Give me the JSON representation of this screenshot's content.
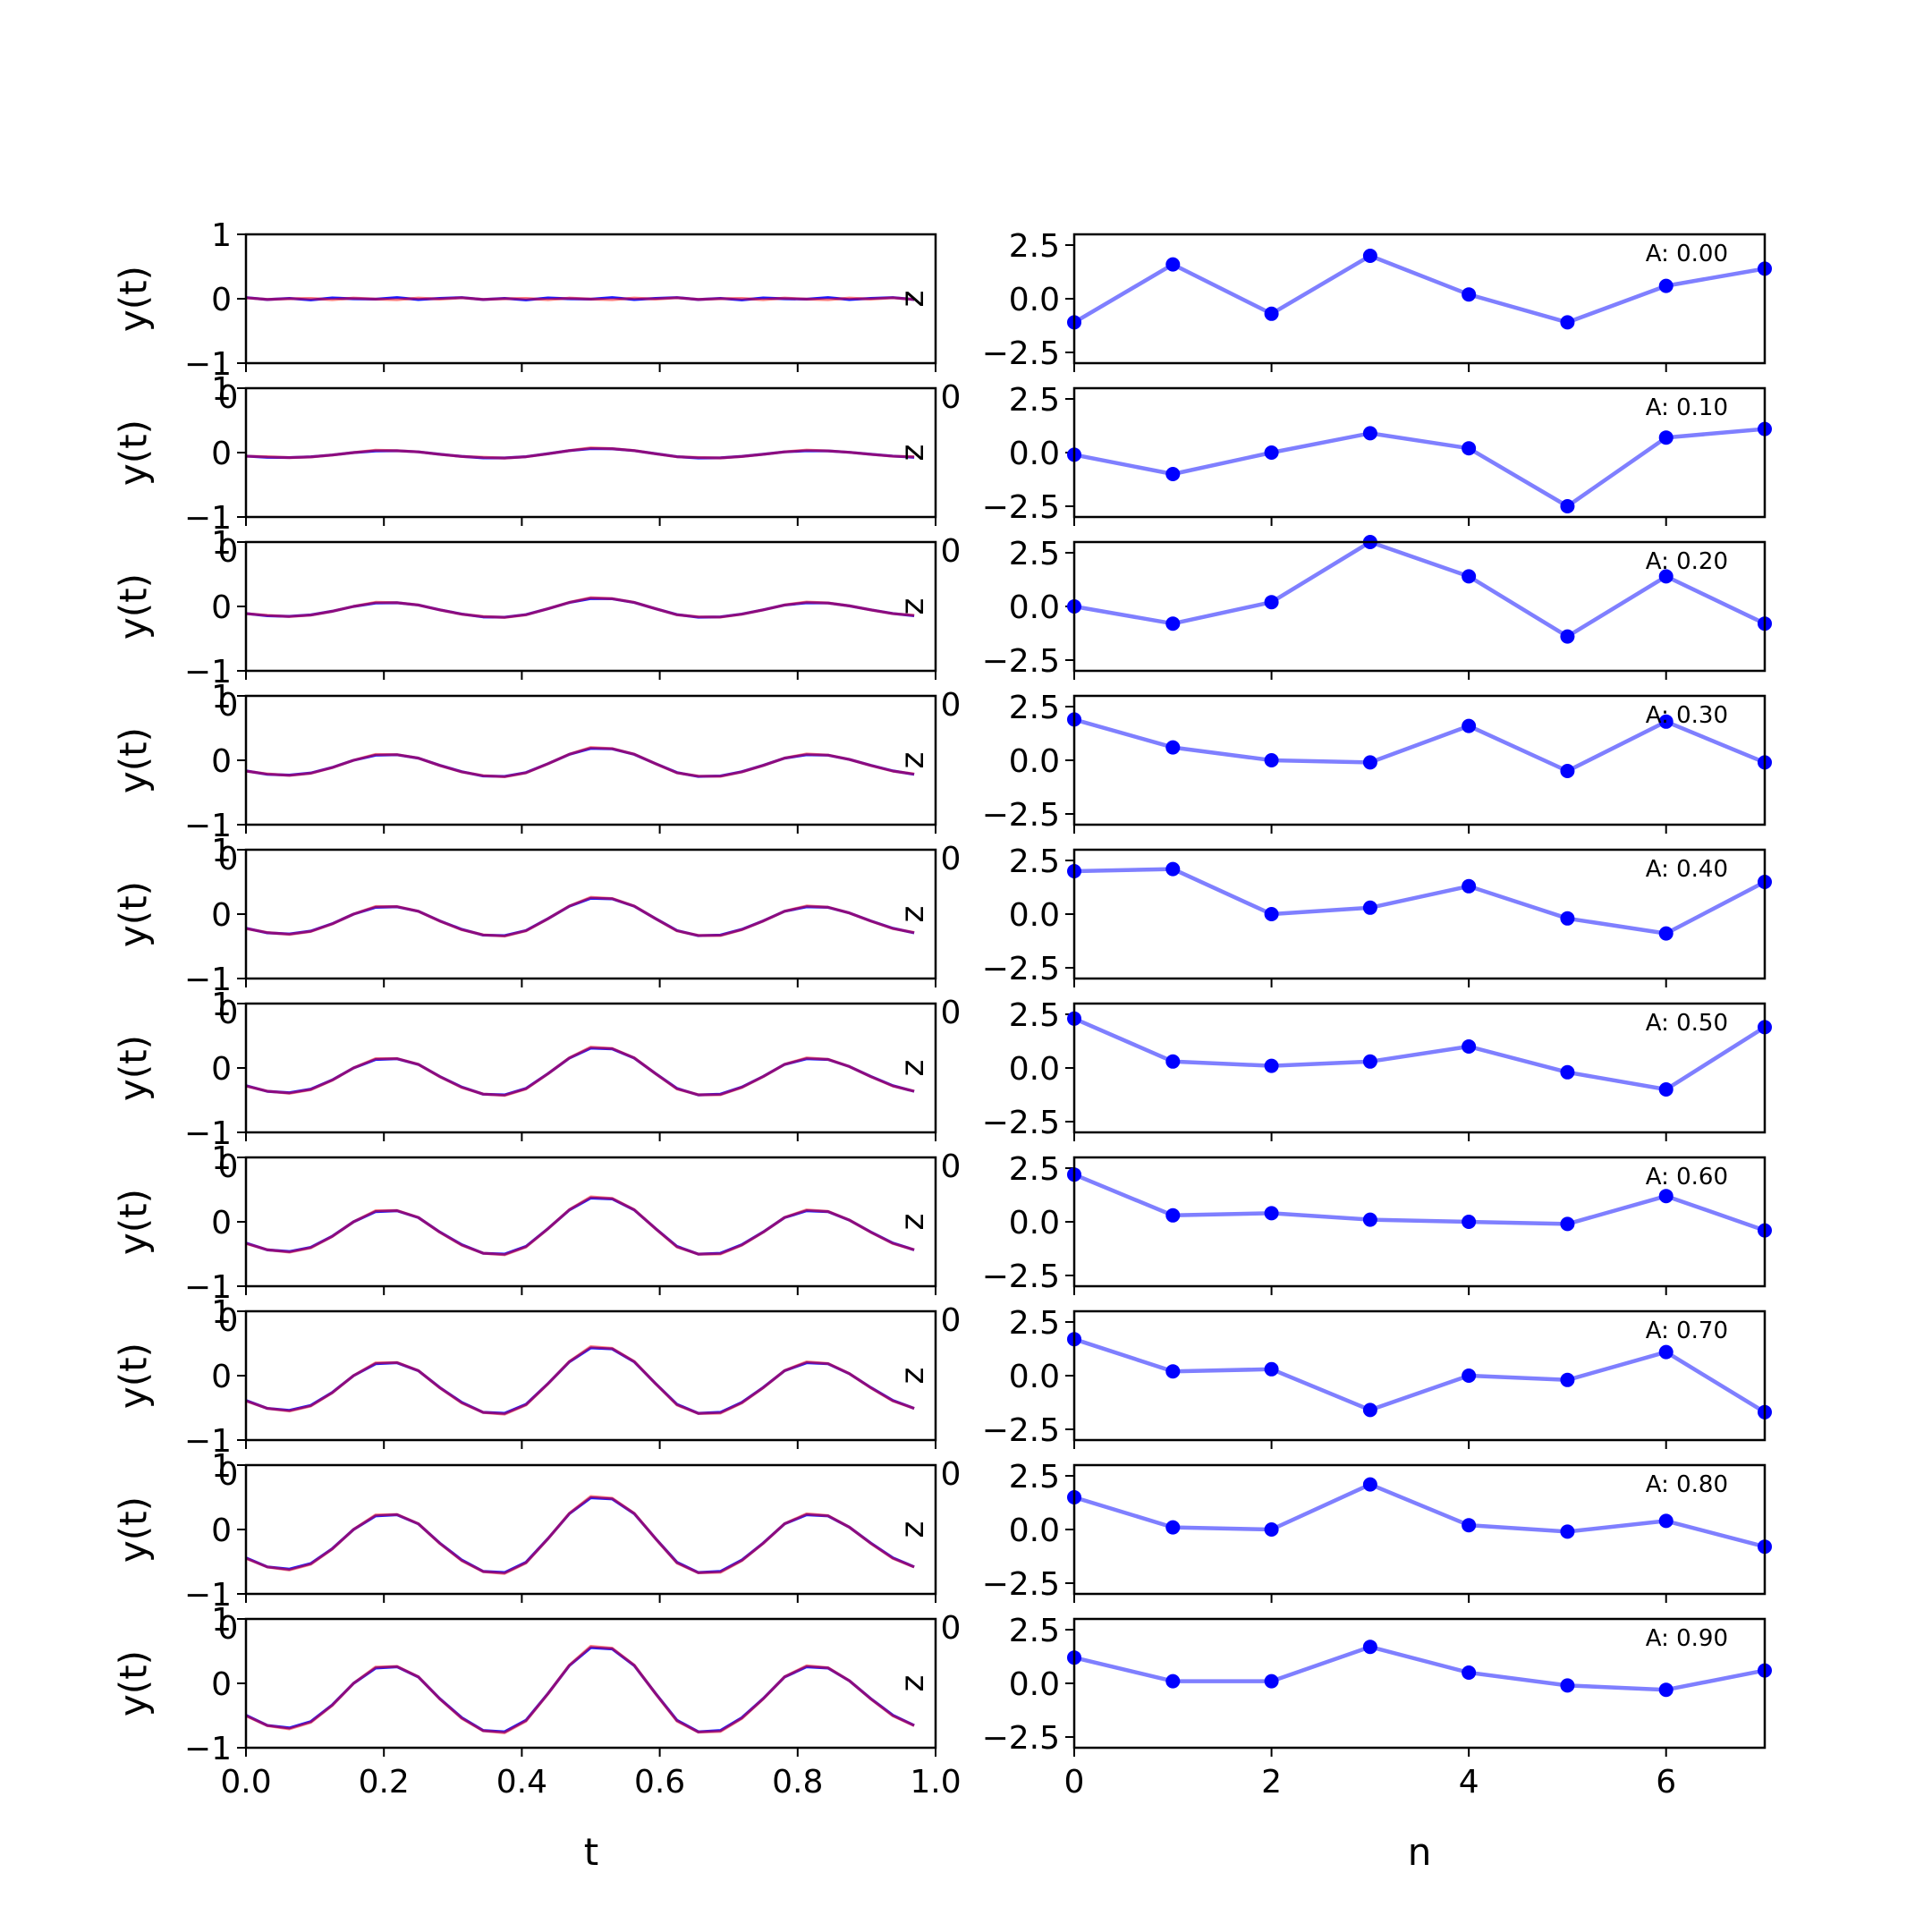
{
  "figure": {
    "left_panels": {
      "xlabel": "t",
      "ylabel": "y(t)",
      "xlim": [
        0,
        1
      ],
      "ylim": [
        -1,
        1
      ],
      "x_ticks": [
        "0.0",
        "0.2",
        "0.4",
        "0.6",
        "0.8",
        "1.0"
      ],
      "y_ticks": [
        "-1",
        "0",
        "1"
      ],
      "stray_text": "z",
      "series_colors": {
        "blue": "#0000ff",
        "red": "#ff0000"
      }
    },
    "right_panels": {
      "xlabel": "n",
      "xlim": [
        0,
        7
      ],
      "ylim": [
        -3,
        3
      ],
      "x_ticks": [
        "0",
        "2",
        "4",
        "6"
      ],
      "y_ticks": [
        "2.5",
        "0.0",
        "-2.5"
      ],
      "line_color": "#7f7fff",
      "marker_color": "#0000ff"
    },
    "overlap_label_left": "0",
    "overlap_label_right": "0"
  },
  "chart_data": [
    {
      "type": "line",
      "panel_group": "left",
      "x": [
        0.0,
        0.031,
        0.063,
        0.094,
        0.125,
        0.156,
        0.188,
        0.219,
        0.25,
        0.281,
        0.313,
        0.344,
        0.375,
        0.406,
        0.438,
        0.469,
        0.5,
        0.531,
        0.563,
        0.594,
        0.625,
        0.656,
        0.688,
        0.719,
        0.75,
        0.781,
        0.813,
        0.844,
        0.875,
        0.906,
        0.938,
        0.969
      ],
      "shape": [
        -0.25,
        -0.33,
        -0.35,
        -0.3,
        -0.17,
        0.0,
        0.12,
        0.13,
        0.05,
        -0.12,
        -0.27,
        -0.37,
        -0.38,
        -0.29,
        -0.08,
        0.14,
        0.28,
        0.27,
        0.14,
        -0.08,
        -0.29,
        -0.38,
        -0.37,
        -0.27,
        -0.12,
        0.05,
        0.13,
        0.12,
        0.02,
        -0.12,
        -0.25,
        -0.33
      ],
      "amplitudes": [
        0.0,
        0.1,
        0.2,
        0.3,
        0.4,
        0.5,
        0.6,
        0.7,
        0.8,
        0.9
      ],
      "series": [
        {
          "color": "blue"
        },
        {
          "color": "red"
        }
      ],
      "xlim": [
        0,
        1
      ],
      "ylim": [
        -1,
        1
      ]
    },
    {
      "type": "line",
      "panel_group": "right",
      "x": [
        0,
        1,
        2,
        3,
        4,
        5,
        6,
        7
      ],
      "panels": [
        {
          "annotation": "A: 0.00",
          "values": [
            -1.1,
            1.6,
            -0.7,
            2.0,
            0.2,
            -1.1,
            0.6,
            1.4
          ]
        },
        {
          "annotation": "A: 0.10",
          "values": [
            -0.1,
            -1.0,
            0.0,
            0.9,
            0.2,
            -2.5,
            0.7,
            1.1
          ]
        },
        {
          "annotation": "A: 0.20",
          "values": [
            0.0,
            -0.8,
            0.2,
            3.0,
            1.4,
            -1.4,
            1.4,
            -0.8
          ]
        },
        {
          "annotation": "A: 0.30",
          "values": [
            1.9,
            0.6,
            0.0,
            -0.1,
            1.6,
            -0.5,
            1.8,
            -0.1
          ]
        },
        {
          "annotation": "A: 0.40",
          "values": [
            2.0,
            2.1,
            0.0,
            0.3,
            1.3,
            -0.2,
            -0.9,
            1.5
          ]
        },
        {
          "annotation": "A: 0.50",
          "values": [
            2.3,
            0.3,
            0.1,
            0.3,
            1.0,
            -0.2,
            -1.0,
            1.9
          ]
        },
        {
          "annotation": "A: 0.60",
          "values": [
            2.2,
            0.3,
            0.4,
            0.1,
            0.0,
            -0.1,
            1.2,
            -0.4
          ]
        },
        {
          "annotation": "A: 0.70",
          "values": [
            1.7,
            0.2,
            0.3,
            -1.6,
            0.0,
            -0.2,
            1.1,
            -1.7
          ]
        },
        {
          "annotation": "A: 0.80",
          "values": [
            1.5,
            0.1,
            0.0,
            2.1,
            0.2,
            -0.1,
            0.4,
            -0.8
          ]
        },
        {
          "annotation": "A: 0.90",
          "values": [
            1.2,
            0.1,
            0.1,
            1.7,
            0.5,
            -0.1,
            -0.3,
            0.6
          ]
        }
      ],
      "xlim": [
        0,
        7
      ],
      "ylim": [
        -3,
        3
      ]
    }
  ]
}
